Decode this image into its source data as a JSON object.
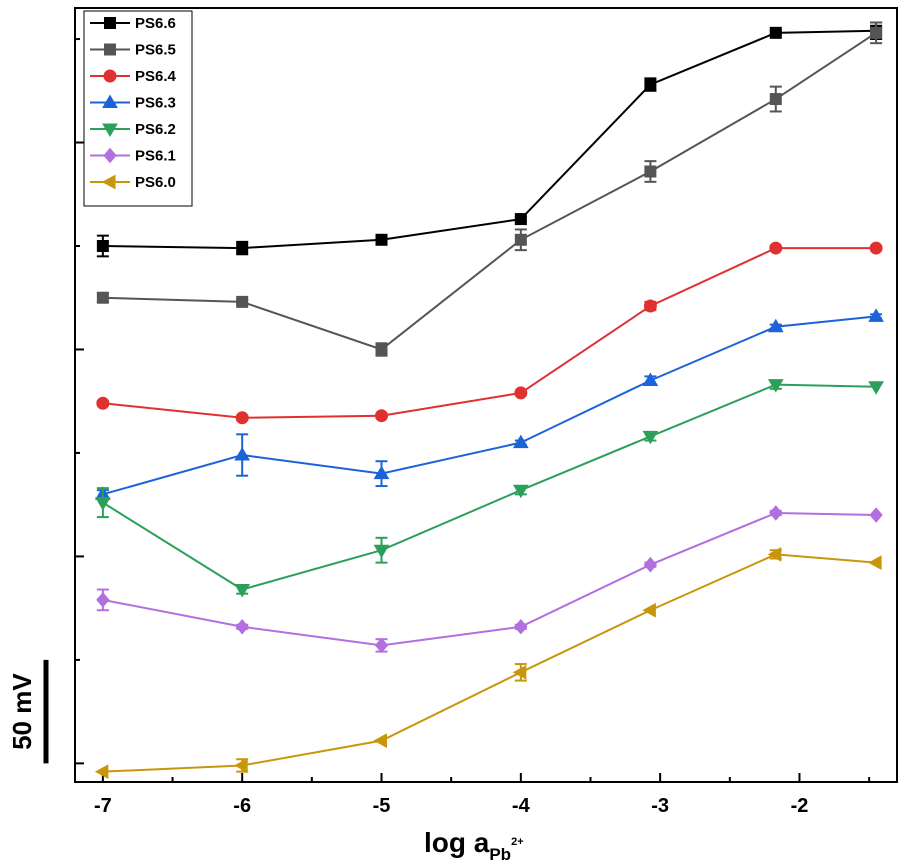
{
  "chart_data": {
    "type": "line",
    "xlabel": {
      "main": "log a",
      "sub": "Pb",
      "sup": "2+"
    },
    "xlim": [
      -7.2,
      -1.3
    ],
    "x_ticks": [
      -7,
      -6,
      -5,
      -4,
      -3,
      -2
    ],
    "x_tick_labels": [
      "-7",
      "-6",
      "-5",
      "-4",
      "-3",
      "-2"
    ],
    "ylim": [
      -9,
      365
    ],
    "y_tick_values": [
      0,
      50,
      100,
      150,
      200,
      250,
      300,
      350
    ],
    "y_scale_label": "50 mV",
    "y_scale_bar": [
      0,
      50
    ],
    "legend_position": "top-left",
    "x": [
      -7,
      -6,
      -5,
      -4,
      -3.07,
      -2.17,
      -1.45
    ],
    "series": [
      {
        "name": "PS6.6",
        "color": "#000000",
        "marker": "square",
        "values": [
          250,
          249,
          253,
          263,
          328,
          353,
          354
        ],
        "errors": [
          5,
          3,
          1,
          1,
          3,
          1,
          4
        ]
      },
      {
        "name": "PS6.5",
        "color": "#555555",
        "marker": "square",
        "values": [
          225,
          223,
          200,
          253,
          286,
          321,
          353
        ],
        "errors": [
          2,
          1,
          3,
          5,
          5,
          6,
          5
        ]
      },
      {
        "name": "PS6.4",
        "color": "#e03131",
        "marker": "circle",
        "values": [
          174,
          167,
          168,
          179,
          221,
          249,
          249
        ],
        "errors": [
          1,
          1,
          1,
          0,
          2,
          0,
          0
        ]
      },
      {
        "name": "PS6.3",
        "color": "#1d63d8",
        "marker": "triangle-up",
        "values": [
          130,
          149,
          140,
          155,
          185,
          211,
          216
        ],
        "errors": [
          2,
          10,
          6,
          1,
          2,
          1,
          1
        ]
      },
      {
        "name": "PS6.2",
        "color": "#2ca05a",
        "marker": "triangle-down",
        "values": [
          126,
          84,
          103,
          132,
          158,
          183,
          182
        ],
        "errors": [
          7,
          2,
          6,
          2,
          2,
          2,
          0
        ]
      },
      {
        "name": "PS6.1",
        "color": "#b26fe0",
        "marker": "diamond",
        "values": [
          79,
          66,
          57,
          66,
          96,
          121,
          120
        ],
        "errors": [
          5,
          1,
          3,
          1,
          1,
          1,
          0
        ]
      },
      {
        "name": "PS6.0",
        "color": "#c8960a",
        "marker": "triangle-left",
        "values": [
          -4,
          -1,
          11,
          44,
          74,
          101,
          97
        ],
        "errors": [
          0,
          3,
          0,
          4,
          0,
          2,
          0
        ]
      }
    ]
  }
}
